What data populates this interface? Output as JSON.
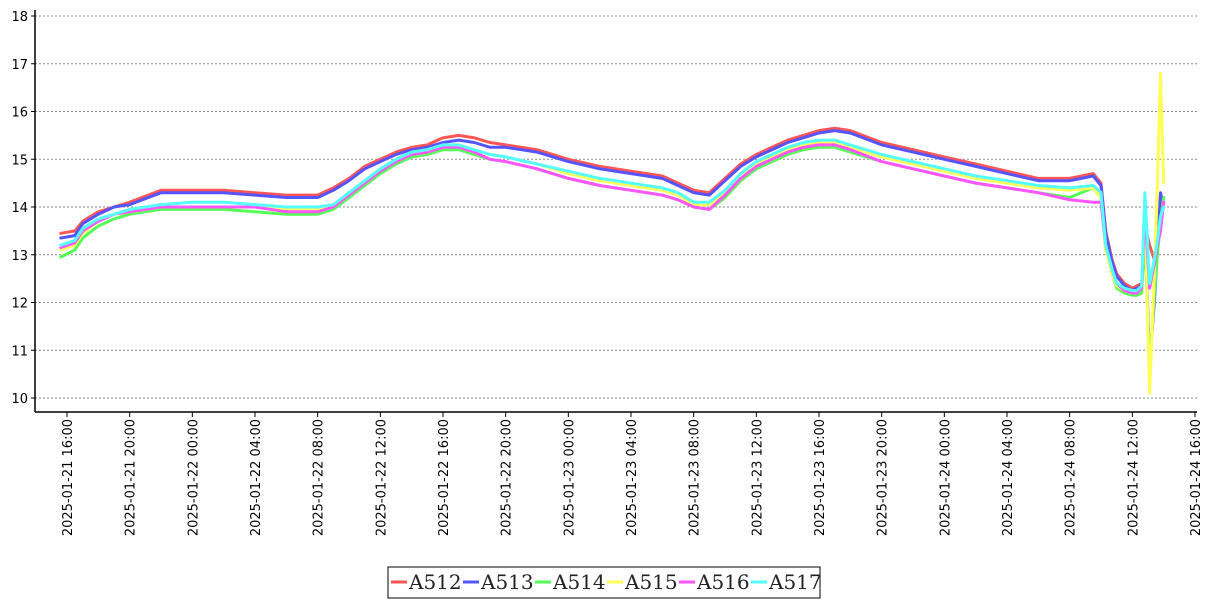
{
  "chart_data": {
    "type": "line",
    "title": "",
    "xlabel": "",
    "ylabel": "",
    "ylim": [
      10,
      18
    ],
    "yticks": [
      10,
      11,
      12,
      13,
      14,
      15,
      16,
      17,
      18
    ],
    "grid": "horizontal-dotted",
    "legend_position": "bottom-center",
    "xticks": [
      {
        "hours": 0,
        "label": "2025-01-21 16:00"
      },
      {
        "hours": 4,
        "label": "2025-01-21 20:00"
      },
      {
        "hours": 8,
        "label": "2025-01-22 00:00"
      },
      {
        "hours": 12,
        "label": "2025-01-22 04:00"
      },
      {
        "hours": 16,
        "label": "2025-01-22 08:00"
      },
      {
        "hours": 20,
        "label": "2025-01-22 12:00"
      },
      {
        "hours": 24,
        "label": "2025-01-22 16:00"
      },
      {
        "hours": 28,
        "label": "2025-01-22 20:00"
      },
      {
        "hours": 32,
        "label": "2025-01-23 00:00"
      },
      {
        "hours": 36,
        "label": "2025-01-23 04:00"
      },
      {
        "hours": 40,
        "label": "2025-01-23 08:00"
      },
      {
        "hours": 44,
        "label": "2025-01-23 12:00"
      },
      {
        "hours": 48,
        "label": "2025-01-23 16:00"
      },
      {
        "hours": 52,
        "label": "2025-01-23 20:00"
      },
      {
        "hours": 56,
        "label": "2025-01-24 00:00"
      },
      {
        "hours": 60,
        "label": "2025-01-24 04:00"
      },
      {
        "hours": 64,
        "label": "2025-01-24 08:00"
      },
      {
        "hours": 68,
        "label": "2025-01-24 12:00"
      },
      {
        "hours": 72,
        "label": "2025-01-24 16:00"
      }
    ],
    "x_hours": [
      -0.4,
      0.5,
      1.0,
      2.0,
      3.0,
      4.0,
      6.0,
      8.0,
      10.0,
      12.0,
      14.0,
      16.0,
      17.0,
      18.0,
      19.0,
      20.0,
      21.0,
      22.0,
      23.0,
      24.0,
      25.0,
      26.0,
      27.0,
      28.0,
      30.0,
      32.0,
      34.0,
      36.0,
      38.0,
      39.0,
      40.0,
      41.0,
      42.0,
      43.0,
      44.0,
      45.0,
      46.0,
      47.0,
      48.0,
      49.0,
      50.0,
      52.0,
      54.0,
      56.0,
      58.0,
      60.0,
      62.0,
      64.0,
      65.5,
      66.0,
      66.3,
      66.7,
      67.0,
      67.5,
      68.0,
      68.3,
      68.6,
      68.8,
      69.1,
      69.4,
      69.6,
      69.8,
      70.0
    ],
    "series": [
      {
        "name": "A512",
        "color": "#ff5555",
        "values": [
          13.45,
          13.5,
          13.7,
          13.9,
          14.0,
          14.1,
          14.35,
          14.35,
          14.35,
          14.3,
          14.25,
          14.25,
          14.4,
          14.6,
          14.85,
          15.0,
          15.15,
          15.25,
          15.3,
          15.45,
          15.5,
          15.45,
          15.35,
          15.3,
          15.2,
          15.0,
          14.85,
          14.75,
          14.65,
          14.5,
          14.35,
          14.3,
          14.6,
          14.9,
          15.1,
          15.25,
          15.4,
          15.5,
          15.6,
          15.65,
          15.6,
          15.35,
          15.2,
          15.05,
          14.9,
          14.75,
          14.6,
          14.6,
          14.7,
          14.5,
          13.5,
          12.9,
          12.6,
          12.4,
          12.3,
          12.35,
          12.4,
          13.6,
          13.2,
          12.9,
          13.3,
          13.9,
          14.2
        ]
      },
      {
        "name": "A513",
        "color": "#5555ff",
        "values": [
          13.35,
          13.4,
          13.65,
          13.85,
          14.0,
          14.05,
          14.3,
          14.3,
          14.3,
          14.25,
          14.2,
          14.2,
          14.35,
          14.55,
          14.8,
          14.95,
          15.1,
          15.2,
          15.25,
          15.35,
          15.4,
          15.35,
          15.25,
          15.25,
          15.15,
          14.95,
          14.8,
          14.7,
          14.6,
          14.45,
          14.3,
          14.25,
          14.55,
          14.85,
          15.05,
          15.2,
          15.35,
          15.45,
          15.55,
          15.6,
          15.55,
          15.3,
          15.15,
          15.0,
          14.85,
          14.7,
          14.55,
          14.55,
          14.65,
          14.45,
          13.45,
          12.85,
          12.55,
          12.35,
          12.25,
          12.3,
          12.35,
          13.6,
          10.7,
          12.0,
          13.1,
          14.3,
          14.0
        ]
      },
      {
        "name": "A514",
        "color": "#55ff55",
        "values": [
          12.95,
          13.1,
          13.35,
          13.6,
          13.75,
          13.85,
          13.95,
          13.95,
          13.95,
          13.9,
          13.85,
          13.85,
          13.95,
          14.2,
          14.45,
          14.7,
          14.9,
          15.05,
          15.1,
          15.2,
          15.2,
          15.1,
          15.0,
          14.95,
          14.8,
          14.6,
          14.45,
          14.35,
          14.25,
          14.15,
          14.0,
          13.95,
          14.2,
          14.55,
          14.8,
          14.95,
          15.1,
          15.2,
          15.25,
          15.25,
          15.15,
          14.95,
          14.8,
          14.65,
          14.5,
          14.4,
          14.3,
          14.2,
          14.4,
          14.2,
          13.1,
          12.6,
          12.3,
          12.2,
          12.15,
          12.15,
          12.2,
          13.5,
          10.5,
          12.2,
          13.0,
          13.7,
          14.2
        ]
      },
      {
        "name": "A515",
        "color": "#ffff55",
        "values": [
          13.1,
          13.2,
          13.45,
          13.7,
          13.85,
          13.9,
          14.0,
          14.0,
          14.0,
          14.0,
          13.95,
          13.95,
          14.05,
          14.3,
          14.55,
          14.8,
          15.0,
          15.15,
          15.2,
          15.3,
          15.3,
          15.2,
          15.1,
          15.05,
          14.9,
          14.7,
          14.55,
          14.45,
          14.35,
          14.25,
          14.05,
          14.05,
          14.3,
          14.65,
          14.9,
          15.05,
          15.2,
          15.3,
          15.35,
          15.35,
          15.25,
          15.05,
          14.9,
          14.75,
          14.6,
          14.5,
          14.4,
          14.35,
          14.4,
          14.2,
          13.1,
          12.6,
          12.35,
          12.25,
          12.2,
          12.2,
          12.3,
          14.0,
          10.1,
          12.6,
          14.5,
          16.8,
          14.5
        ]
      },
      {
        "name": "A516",
        "color": "#ff55ff",
        "values": [
          13.15,
          13.25,
          13.5,
          13.7,
          13.85,
          13.9,
          14.0,
          14.0,
          14.0,
          14.0,
          13.9,
          13.9,
          14.0,
          14.25,
          14.5,
          14.75,
          14.95,
          15.1,
          15.15,
          15.25,
          15.25,
          15.15,
          15.0,
          14.95,
          14.8,
          14.6,
          14.45,
          14.35,
          14.25,
          14.15,
          14.0,
          13.95,
          14.25,
          14.6,
          14.85,
          15.0,
          15.15,
          15.25,
          15.3,
          15.3,
          15.2,
          14.95,
          14.8,
          14.65,
          14.5,
          14.4,
          14.3,
          14.15,
          14.1,
          14.1,
          13.2,
          12.7,
          12.4,
          12.25,
          12.2,
          12.2,
          12.3,
          13.9,
          12.3,
          12.8,
          13.2,
          13.5,
          14.1
        ]
      },
      {
        "name": "A517",
        "color": "#55ffff",
        "values": [
          13.2,
          13.3,
          13.55,
          13.75,
          13.85,
          13.95,
          14.05,
          14.1,
          14.1,
          14.05,
          14.0,
          14.0,
          14.05,
          14.3,
          14.55,
          14.8,
          15.0,
          15.15,
          15.2,
          15.3,
          15.3,
          15.2,
          15.1,
          15.05,
          14.9,
          14.75,
          14.6,
          14.5,
          14.4,
          14.3,
          14.1,
          14.1,
          14.35,
          14.7,
          14.95,
          15.1,
          15.25,
          15.35,
          15.4,
          15.4,
          15.3,
          15.1,
          14.95,
          14.8,
          14.65,
          14.55,
          14.45,
          14.4,
          14.45,
          14.3,
          13.2,
          12.7,
          12.4,
          12.3,
          12.25,
          12.25,
          12.35,
          14.3,
          12.4,
          12.9,
          13.3,
          13.8,
          14.0
        ]
      }
    ]
  }
}
